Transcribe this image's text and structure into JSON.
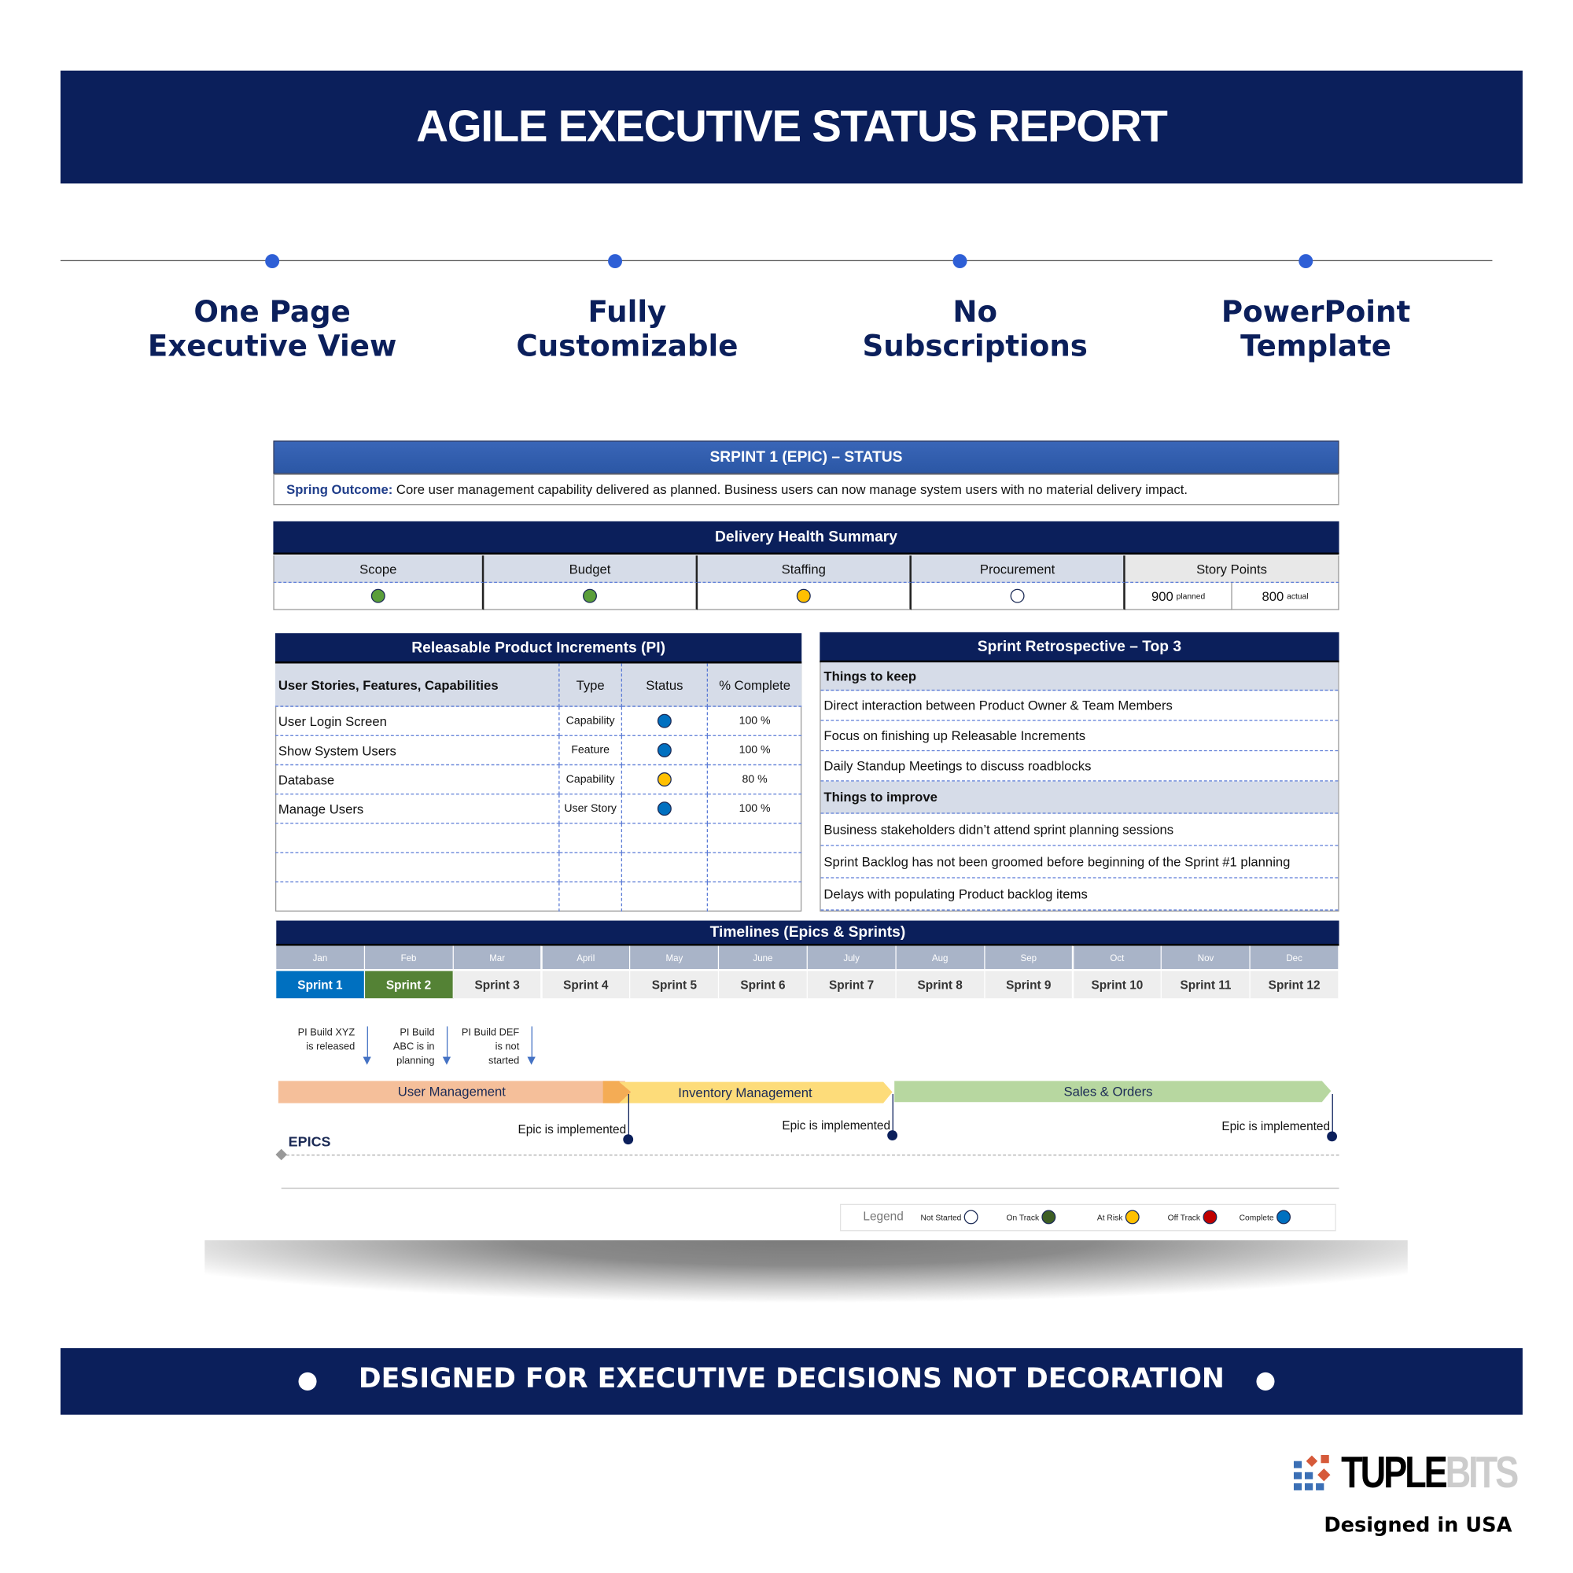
{
  "title": "AGILE EXECUTIVE STATUS REPORT",
  "features": [
    {
      "l1": "One Page",
      "l2": "Executive View"
    },
    {
      "l1": "Fully",
      "l2": "Customizable"
    },
    {
      "l1": "No",
      "l2": "Subscriptions"
    },
    {
      "l1": "PowerPoint",
      "l2": "Template"
    }
  ],
  "report": {
    "sprint_header": "SRPINT 1 (EPIC) – STATUS",
    "outcome_label": "Spring Outcome:",
    "outcome_text": " Core user management capability delivered as planned. Business users can now manage system users with no material delivery impact.",
    "health": {
      "title": "Delivery Health Summary",
      "columns": [
        {
          "label": "Scope",
          "status": "on-track"
        },
        {
          "label": "Budget",
          "status": "on-track"
        },
        {
          "label": "Staffing",
          "status": "at-risk"
        },
        {
          "label": "Procurement",
          "status": "not-started"
        }
      ],
      "story_points": {
        "label": "Story Points",
        "planned": "900",
        "planned_label": "planned",
        "actual": "800",
        "actual_label": "actual"
      }
    },
    "pi": {
      "title": "Releasable Product Increments (PI)",
      "headers": [
        "User Stories, Features, Capabilities",
        "Type",
        "Status",
        "% Complete"
      ],
      "rows": [
        {
          "name": "User Login Screen",
          "type": "Capability",
          "status": "complete",
          "pct": "100 %"
        },
        {
          "name": "Show System Users",
          "type": "Feature",
          "status": "complete",
          "pct": "100 %"
        },
        {
          "name": "Database",
          "type": "Capability",
          "status": "at-risk",
          "pct": "80 %"
        },
        {
          "name": "Manage Users",
          "type": "User Story",
          "status": "complete",
          "pct": "100 %"
        }
      ]
    },
    "retro": {
      "title": "Sprint Retrospective – Top 3",
      "keep_label": "Things to keep",
      "keep": [
        "Direct interaction between Product Owner & Team Members",
        "Focus on finishing up Releasable Increments",
        "Daily Standup Meetings to discuss roadblocks"
      ],
      "improve_label": "Things to improve",
      "improve": [
        "Business stakeholders didn’t attend sprint planning sessions",
        "Sprint Backlog has not been groomed before beginning of the Sprint #1 planning",
        "Delays with populating Product backlog items"
      ]
    },
    "timeline": {
      "title": "Timelines (Epics & Sprints)",
      "months": [
        "Jan",
        "Feb",
        "Mar",
        "April",
        "May",
        "June",
        "July",
        "Aug",
        "Sep",
        "Oct",
        "Nov",
        "Dec"
      ],
      "sprints": [
        "Sprint 1",
        "Sprint 2",
        "Sprint 3",
        "Sprint 4",
        "Sprint 5",
        "Sprint 6",
        "Sprint 7",
        "Sprint 8",
        "Sprint 9",
        "Sprint 10",
        "Sprint 11",
        "Sprint 12"
      ],
      "annotations": [
        {
          "l1": "PI Build XYZ",
          "l2": "is released",
          "l3": ""
        },
        {
          "l1": "PI Build",
          "l2": "ABC is in",
          "l3": "planning"
        },
        {
          "l1": "PI Build DEF",
          "l2": "is not",
          "l3": "started"
        }
      ],
      "epics": [
        {
          "name": "User Management",
          "color": "#f5bf9a"
        },
        {
          "name": "Inventory Management",
          "color": "#fddc7a"
        },
        {
          "name": "Sales & Orders",
          "color": "#b7d7a0"
        }
      ],
      "epic_note": "Epic is implemented",
      "epics_label": "EPICS"
    },
    "legend": {
      "label": "Legend",
      "items": [
        {
          "label": "Not Started",
          "color": "#ffffff"
        },
        {
          "label": "On Track",
          "color": "#3d5e24"
        },
        {
          "label": "At Risk",
          "color": "#ffc000"
        },
        {
          "label": "Off Track",
          "color": "#c00000"
        },
        {
          "label": "Complete",
          "color": "#0070c0"
        }
      ]
    }
  },
  "footer_banner": "DESIGNED FOR EXECUTIVE DECISIONS NOT DECORATION",
  "logo": {
    "part1": "TUPLE",
    "part2": "BITS"
  },
  "designed_in": "Designed in USA",
  "colors": {
    "navy": "#0b1f5b",
    "complete": "#0070c0",
    "on_track": "#5a9e3a",
    "at_risk": "#ffc000"
  }
}
